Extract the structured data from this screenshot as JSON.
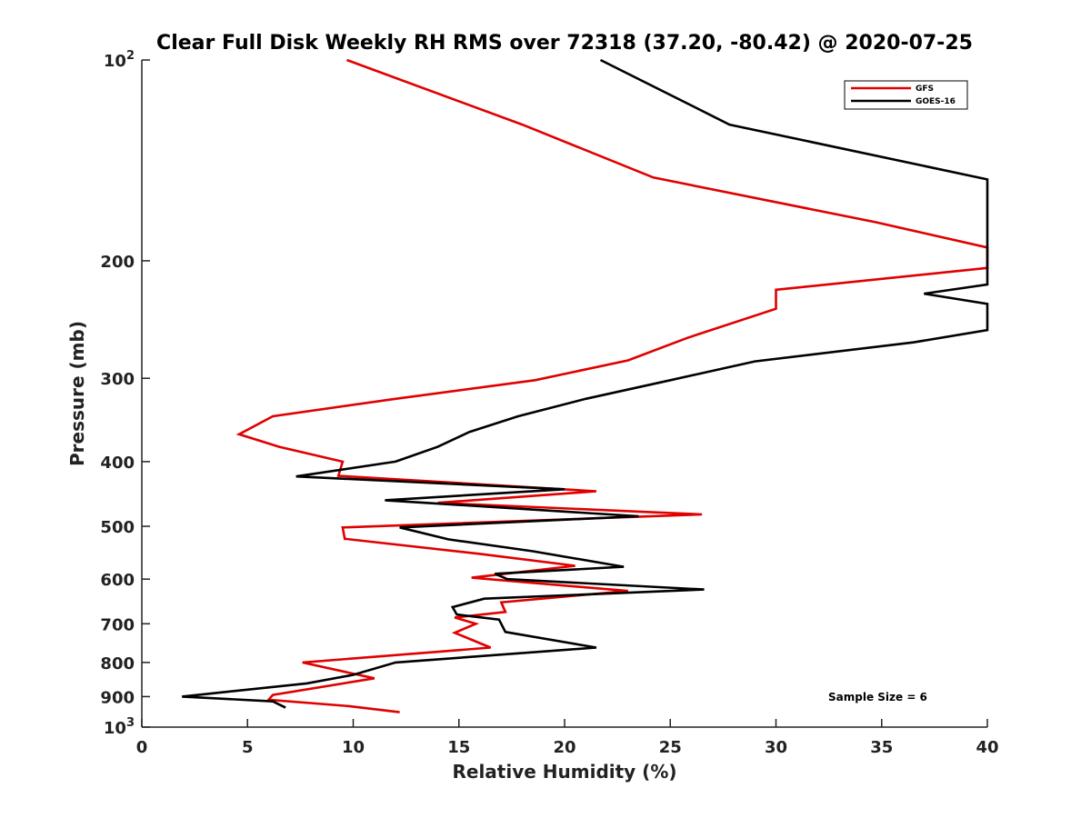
{
  "chart_data": {
    "type": "line",
    "title": "Clear Full Disk Weekly RH RMS over 72318 (37.20, -80.42) @ 2020-07-25",
    "xlabel": "Relative Humidity (%)",
    "ylabel": "Pressure (mb)",
    "xlim": [
      0,
      40
    ],
    "ylim": [
      100,
      1000
    ],
    "y_scale": "log",
    "y_reversed": true,
    "grid": false,
    "legend_position": "top-right",
    "x_ticks": [
      "0",
      "5",
      "10",
      "15",
      "20",
      "25",
      "30",
      "35",
      "40"
    ],
    "y_ticks": [
      {
        "value": 100,
        "base": "10",
        "exp": "2"
      },
      {
        "value": 200,
        "label": "200"
      },
      {
        "value": 300,
        "label": "300"
      },
      {
        "value": 400,
        "label": "400"
      },
      {
        "value": 500,
        "label": "500"
      },
      {
        "value": 600,
        "label": "600"
      },
      {
        "value": 700,
        "label": "700"
      },
      {
        "value": 800,
        "label": "800"
      },
      {
        "value": 900,
        "label": "900"
      },
      {
        "value": 1000,
        "base": "10",
        "exp": "3"
      }
    ],
    "series": [
      {
        "name": "GFS",
        "color": "#e00000",
        "points": [
          [
            9.7,
            100
          ],
          [
            18.0,
            125
          ],
          [
            24.2,
            150
          ],
          [
            34.7,
            175
          ],
          [
            40.0,
            191
          ],
          [
            40.0,
            205
          ],
          [
            30.0,
            221
          ],
          [
            30.0,
            236
          ],
          [
            25.8,
            261
          ],
          [
            23.0,
            282
          ],
          [
            18.6,
            302
          ],
          [
            12.0,
            322
          ],
          [
            6.2,
            342
          ],
          [
            4.6,
            364
          ],
          [
            6.5,
            380
          ],
          [
            9.5,
            400
          ],
          [
            9.3,
            420
          ],
          [
            21.5,
            443
          ],
          [
            14.0,
            461
          ],
          [
            26.5,
            480
          ],
          [
            9.5,
            502
          ],
          [
            9.6,
            522
          ],
          [
            16.0,
            550
          ],
          [
            20.5,
            573
          ],
          [
            15.6,
            597
          ],
          [
            23.0,
            625
          ],
          [
            17.0,
            650
          ],
          [
            17.2,
            672
          ],
          [
            14.8,
            685
          ],
          [
            15.8,
            700
          ],
          [
            14.8,
            722
          ],
          [
            16.5,
            760
          ],
          [
            7.6,
            800
          ],
          [
            11.0,
            845
          ],
          [
            6.2,
            895
          ],
          [
            6.0,
            910
          ],
          [
            9.8,
            930
          ],
          [
            12.2,
            950
          ]
        ]
      },
      {
        "name": "GOES-16",
        "color": "#000000",
        "points": [
          [
            21.7,
            100
          ],
          [
            27.8,
            125
          ],
          [
            40.0,
            151
          ],
          [
            40.0,
            217
          ],
          [
            37.0,
            224
          ],
          [
            40.0,
            232
          ],
          [
            40.0,
            254
          ],
          [
            36.5,
            265
          ],
          [
            29.0,
            283
          ],
          [
            25.0,
            302
          ],
          [
            21.0,
            322
          ],
          [
            17.8,
            342
          ],
          [
            15.5,
            361
          ],
          [
            14.0,
            380
          ],
          [
            12.0,
            400
          ],
          [
            7.3,
            421
          ],
          [
            20.0,
            440
          ],
          [
            11.5,
            457
          ],
          [
            23.5,
            483
          ],
          [
            12.2,
            502
          ],
          [
            14.5,
            523
          ],
          [
            18.5,
            545
          ],
          [
            22.8,
            575
          ],
          [
            16.7,
            589
          ],
          [
            17.3,
            600
          ],
          [
            26.6,
            622
          ],
          [
            16.2,
            642
          ],
          [
            14.7,
            661
          ],
          [
            14.9,
            678
          ],
          [
            16.9,
            690
          ],
          [
            17.2,
            720
          ],
          [
            21.5,
            760
          ],
          [
            12.0,
            800
          ],
          [
            10.0,
            835
          ],
          [
            7.8,
            860
          ],
          [
            1.9,
            900
          ],
          [
            6.2,
            915
          ],
          [
            6.8,
            935
          ]
        ]
      }
    ],
    "annotations": [
      {
        "text": "Sample Size = 6"
      }
    ]
  }
}
